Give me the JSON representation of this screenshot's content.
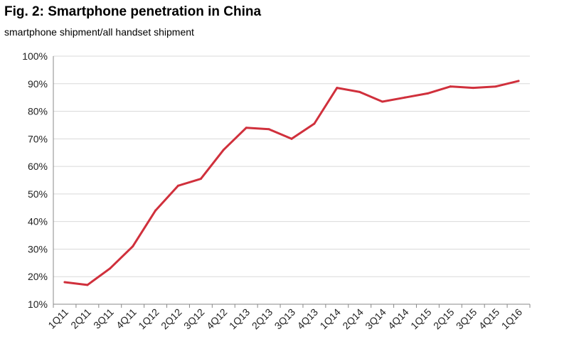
{
  "chart_data": {
    "type": "line",
    "title": "Fig. 2: Smartphone penetration in China",
    "subtitle": "smartphone shipment/all handset shipment",
    "xlabel": "",
    "ylabel": "",
    "categories": [
      "1Q11",
      "2Q11",
      "3Q11",
      "4Q11",
      "1Q12",
      "2Q12",
      "3Q12",
      "4Q12",
      "1Q13",
      "2Q13",
      "3Q13",
      "4Q13",
      "1Q14",
      "2Q14",
      "3Q14",
      "4Q14",
      "1Q15",
      "2Q15",
      "3Q15",
      "4Q15",
      "1Q16"
    ],
    "series": [
      {
        "values": [
          18,
          17,
          23,
          31,
          44,
          53,
          55.5,
          66,
          74,
          73.5,
          70,
          75.5,
          88.5,
          87,
          83.5,
          85,
          86.5,
          89,
          88.5,
          89,
          91
        ],
        "color": "#d0303c"
      }
    ],
    "ylim": [
      10,
      100
    ],
    "yticks": [
      "10%",
      "20%",
      "30%",
      "40%",
      "50%",
      "60%",
      "70%",
      "80%",
      "90%",
      "100%"
    ],
    "grid": true,
    "legend": "none"
  }
}
